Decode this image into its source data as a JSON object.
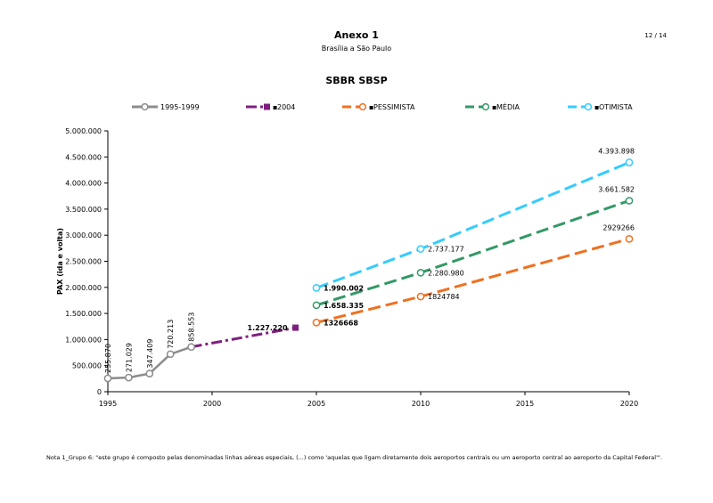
{
  "header": {
    "title": "Anexo 1",
    "subtitle": "Brasília a São Paulo",
    "page_number": "12 / 14"
  },
  "footnote": "Nota 1_Grupo 6: \"este grupo é composto pelas denominadas linhas aéreas especiais, (...) como 'aquelas que ligam diretamente dois aeroportos centrais ou um aeroporto central ao aeroporto da Capital Federal'\".",
  "colors": {
    "hist": "#8c8c8c",
    "y2004": "#7f1f7f",
    "pess": "#f07020",
    "media": "#339966",
    "otim": "#33ccff",
    "axis": "#000000",
    "grid": "#bfbfbf"
  },
  "chart_data": {
    "type": "line",
    "title": "SBBR SBSP",
    "xlabel": "",
    "ylabel": "PAX (ida e volta)",
    "xlim": [
      1995,
      2020
    ],
    "ylim": [
      0,
      5000000
    ],
    "x_ticks": [
      1995,
      2000,
      2005,
      2010,
      2015,
      2020
    ],
    "x_tick_labels": [
      "1995",
      "2000",
      "2005",
      "2010",
      "2015",
      "2020"
    ],
    "y_ticks": [
      0,
      500000,
      1000000,
      1500000,
      2000000,
      2500000,
      3000000,
      3500000,
      4000000,
      4500000,
      5000000
    ],
    "y_tick_labels": [
      "0",
      "500.000",
      "1.000.000",
      "1.500.000",
      "2.000.000",
      "2.500.000",
      "3.000.000",
      "3.500.000",
      "4.000.000",
      "4.500.000",
      "5.000.000"
    ],
    "legend_position": "top",
    "series": [
      {
        "key": "hist",
        "name": "1995-1999",
        "marker": "circle",
        "line": "solid",
        "points": [
          {
            "x": 1995,
            "y": 255870,
            "label": "255.870"
          },
          {
            "x": 1996,
            "y": 271029,
            "label": "271.029"
          },
          {
            "x": 1997,
            "y": 347409,
            "label": "347.409"
          },
          {
            "x": 1998,
            "y": 720213,
            "label": "720.213"
          },
          {
            "x": 1999,
            "y": 858553,
            "label": "858.553"
          }
        ]
      },
      {
        "key": "y2004",
        "name": "2004",
        "marker": "square",
        "line": "dashdot",
        "points": [
          {
            "x": 2004,
            "y": 1227220,
            "label": "1.227.220"
          }
        ]
      },
      {
        "key": "pess",
        "name": "PESSIMISTA",
        "marker": "circle",
        "line": "dashed",
        "points": [
          {
            "x": 2005,
            "y": 1326668,
            "label": "1326668"
          },
          {
            "x": 2010,
            "y": 1824784,
            "label": "1824784"
          },
          {
            "x": 2020,
            "y": 2929266,
            "label": "2929266"
          }
        ]
      },
      {
        "key": "media",
        "name": "MÉDIA",
        "marker": "circle",
        "line": "dashed",
        "points": [
          {
            "x": 2005,
            "y": 1658335,
            "label": "1.658.335"
          },
          {
            "x": 2010,
            "y": 2280980,
            "label": "2.280.980"
          },
          {
            "x": 2020,
            "y": 3661582,
            "label": "3.661.582"
          }
        ]
      },
      {
        "key": "otim",
        "name": "OTIMISTA",
        "marker": "circle",
        "line": "dashed",
        "points": [
          {
            "x": 2005,
            "y": 1990002,
            "label": "1.990.002"
          },
          {
            "x": 2010,
            "y": 2737177,
            "label": "2.737.177"
          },
          {
            "x": 2020,
            "y": 4393898,
            "label": "4.393.898"
          }
        ]
      }
    ]
  }
}
